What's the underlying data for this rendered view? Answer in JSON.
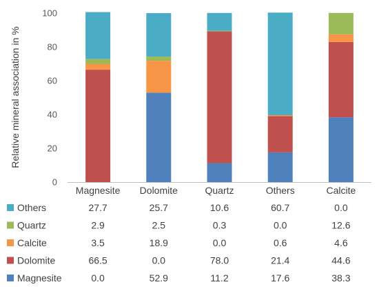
{
  "chart_data": {
    "type": "bar",
    "stacked": true,
    "ylabel": "Relative mineral association in %",
    "ylim": [
      0,
      100
    ],
    "yticks": [
      0,
      20,
      40,
      60,
      80,
      100
    ],
    "categories": [
      "Magnesite",
      "Dolomite",
      "Quartz",
      "Others",
      "Calcite"
    ],
    "series": [
      {
        "name": "Magnesite",
        "color": "#4f81bd",
        "values": [
          0.0,
          52.9,
          11.2,
          17.6,
          38.3
        ]
      },
      {
        "name": "Dolomite",
        "color": "#c0504d",
        "values": [
          66.5,
          0.0,
          78.0,
          21.4,
          44.6
        ]
      },
      {
        "name": "Calcite",
        "color": "#f79646",
        "values": [
          3.5,
          18.9,
          0.0,
          0.6,
          4.6
        ]
      },
      {
        "name": "Quartz",
        "color": "#9bbb59",
        "values": [
          2.9,
          2.5,
          0.3,
          0.0,
          12.6
        ]
      },
      {
        "name": "Others",
        "color": "#4bacc6",
        "values": [
          27.7,
          25.7,
          10.6,
          60.7,
          0.0
        ]
      }
    ],
    "table_labels": {
      "Magnesite": [
        "0.0",
        "52.9",
        "11.2",
        "17.6",
        "38.3"
      ],
      "Dolomite": [
        "66.5",
        "0.0",
        "78.0",
        "21.4",
        "44.6"
      ],
      "Calcite": [
        "3.5",
        "18.9",
        "0.0",
        "0.6",
        "4.6"
      ],
      "Quartz": [
        "2.9",
        "2.5",
        "0.3",
        "0.0",
        "12.6"
      ],
      "Others": [
        "27.7",
        "25.7",
        "10.6",
        "60.7",
        "0.0"
      ]
    },
    "grid": false,
    "legend": "data-table"
  }
}
